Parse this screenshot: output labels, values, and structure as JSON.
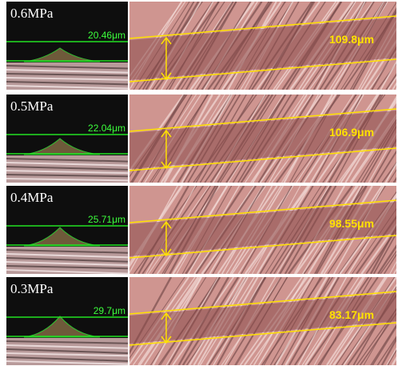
{
  "rows": [
    {
      "pressure": "0.6MPa",
      "height": "20.46μm",
      "width": "109.8μm"
    },
    {
      "pressure": "0.5MPa",
      "height": "22.04μm",
      "width": "106.9μm"
    },
    {
      "pressure": "0.4MPa",
      "height": "25.71μm",
      "width": "98.55μm"
    },
    {
      "pressure": "0.3MPa",
      "height": "29.7μm",
      "width": "83.17μm"
    }
  ]
}
